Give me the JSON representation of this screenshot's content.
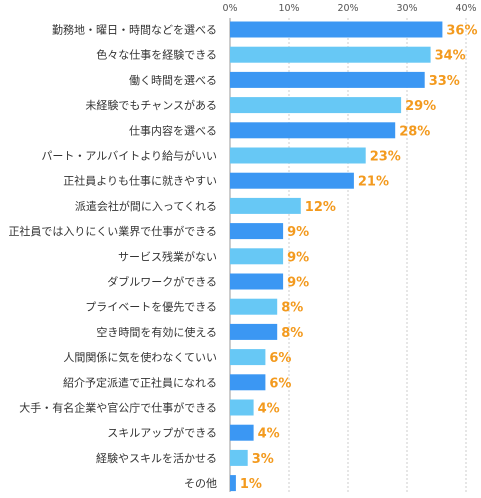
{
  "chart_data": {
    "type": "bar",
    "orientation": "horizontal",
    "value_suffix": "%",
    "xlim": [
      0,
      40
    ],
    "xticks": [
      "0%",
      "10%",
      "20%",
      "30%",
      "40%"
    ],
    "grid": true,
    "colors": {
      "odd_bar": "#3b97f3",
      "even_bar": "#67c8f5",
      "value_label": "#f39a1e",
      "grid": "#cccccc",
      "axis": "#999999"
    },
    "categories": [
      "勤務地・曜日・時間などを選べる",
      "色々な仕事を経験できる",
      "働く時間を選べる",
      "未経験でもチャンスがある",
      "仕事内容を選べる",
      "パート・アルバイトより給与がいい",
      "正社員よりも仕事に就きやすい",
      "派遣会社が間に入ってくれる",
      "正社員では入りにくい業界で仕事ができる",
      "サービス残業がない",
      "ダブルワークができる",
      "プライベートを優先できる",
      "空き時間を有効に使える",
      "人間関係に気を使わなくていい",
      "紹介予定派遣で正社員になれる",
      "大手・有名企業や官公庁で仕事ができる",
      "スキルアップができる",
      "経験やスキルを活かせる",
      "その他"
    ],
    "values": [
      36,
      34,
      33,
      29,
      28,
      23,
      21,
      12,
      9,
      9,
      9,
      8,
      8,
      6,
      6,
      4,
      4,
      3,
      1
    ],
    "value_labels": [
      "36%",
      "34%",
      "33%",
      "29%",
      "28%",
      "23%",
      "21%",
      "12%",
      "9%",
      "9%",
      "9%",
      "8%",
      "8%",
      "6%",
      "6%",
      "4%",
      "4%",
      "3%",
      "1%"
    ]
  }
}
